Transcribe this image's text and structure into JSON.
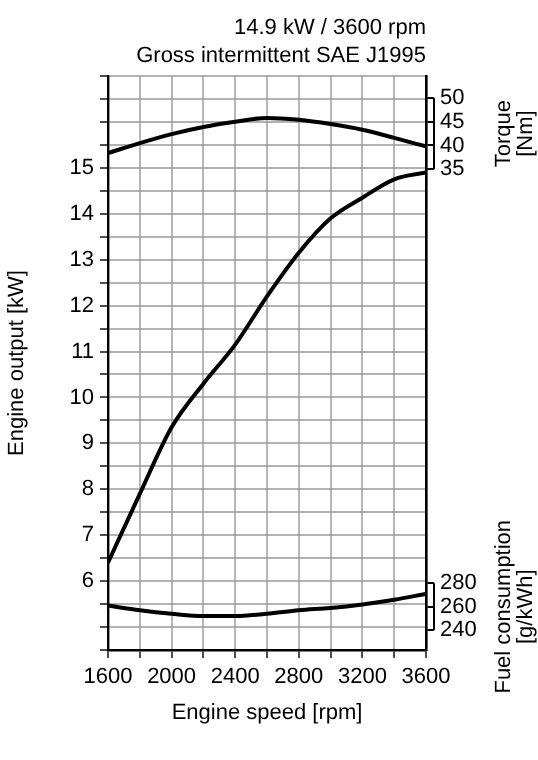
{
  "chart_data": {
    "type": "line",
    "title": "14.9 kW / 3600 rpm",
    "subtitle": "Gross intermittent SAE J1995",
    "xlabel": "Engine speed [rpm]",
    "ylabel": "Engine output [kW]",
    "y2label": "Torque [Nm]",
    "y3label": "Fuel consumption [g/kWh]",
    "x": [
      1600,
      1800,
      2000,
      2200,
      2400,
      2600,
      2800,
      3000,
      3200,
      3400,
      3600
    ],
    "xlim": [
      1600,
      3600
    ],
    "xticks": [
      1600,
      {
        "value": 1800,
        "label": null
      },
      2000,
      {
        "value": 2200,
        "label": null
      },
      2400,
      {
        "value": 2600,
        "label": null
      },
      2800,
      {
        "value": 3000,
        "label": null
      },
      3200,
      {
        "value": 3400,
        "label": null
      },
      3600
    ],
    "ylim": [
      4.5,
      17
    ],
    "yticks": [
      {
        "value": 4.5,
        "label": null
      },
      {
        "value": 5,
        "label": null
      },
      {
        "value": 5.5,
        "label": null
      },
      6,
      {
        "value": 6.5,
        "label": null
      },
      7,
      {
        "value": 7.5,
        "label": null
      },
      8,
      {
        "value": 8.5,
        "label": null
      },
      9,
      {
        "value": 9.5,
        "label": null
      },
      10,
      {
        "value": 10.5,
        "label": null
      },
      11,
      {
        "value": 11.5,
        "label": null
      },
      12,
      {
        "value": 12.5,
        "label": null
      },
      13,
      {
        "value": 13.5,
        "label": null
      },
      14,
      {
        "value": 14.5,
        "label": null
      },
      15,
      {
        "value": 15.5,
        "label": null
      },
      {
        "value": 16,
        "label": null
      },
      {
        "value": 16.5,
        "label": null
      },
      {
        "value": 17,
        "label": null
      }
    ],
    "y2lim": [
      -66,
      54.6
    ],
    "y2ticks": [
      35,
      40,
      45,
      50
    ],
    "y3lim": [
      223,
      714
    ],
    "y3ticks": [
      240,
      260,
      280
    ],
    "grid": true,
    "legend": false,
    "marker": "none",
    "line_style": "solid",
    "series": [
      {
        "color": "#000000",
        "axis": "y",
        "values": [
          6.4,
          7.9,
          9.35,
          10.3,
          11.15,
          12.2,
          13.15,
          13.9,
          14.35,
          14.75,
          14.9
        ]
      },
      {
        "color": "#000000",
        "axis": "y2",
        "values": [
          38.4,
          40.5,
          42.4,
          43.9,
          45,
          45.8,
          45.4,
          44.5,
          43.3,
          41.6,
          39.8
        ]
      },
      {
        "color": "#000000",
        "axis": "y3",
        "values": [
          261,
          257,
          254,
          252,
          252,
          254,
          257,
          259,
          262,
          266,
          271
        ]
      }
    ]
  }
}
